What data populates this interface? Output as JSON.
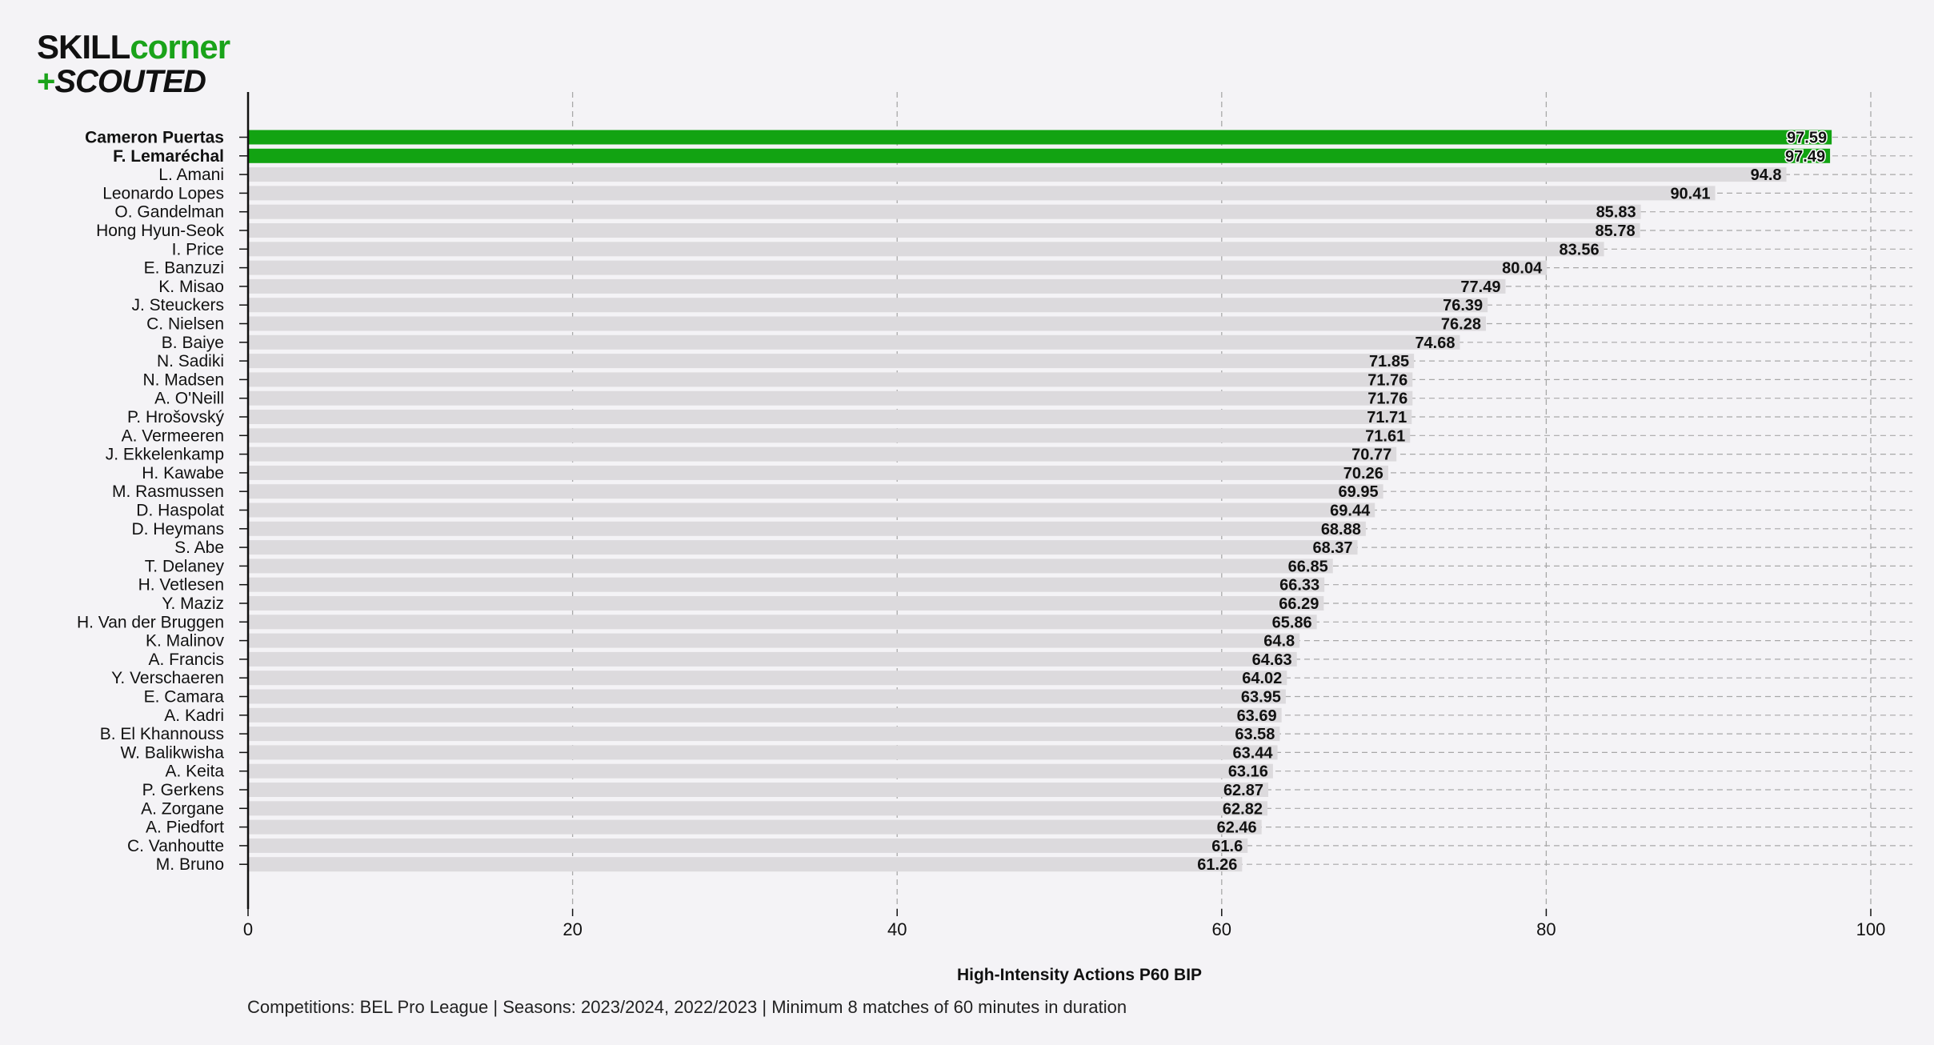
{
  "logo": {
    "line1_part1": "SKILL",
    "line1_part2": "corner",
    "line2_plus": "+",
    "line2_text": "SCOUTED"
  },
  "colors": {
    "highlight": "#12a312",
    "bar": "#dcdadd",
    "background": "#f4f3f6",
    "grid": "#a8a8a8"
  },
  "footnote": "Competitions: BEL Pro League | Seasons: 2023/2024, 2022/2023 | Minimum 8 matches of 60 minutes in duration",
  "chart_data": {
    "type": "bar",
    "orientation": "horizontal",
    "xlabel": "High-Intensity Actions P60 BIP",
    "ylabel": "",
    "xlim": [
      0,
      100
    ],
    "xticks": [
      0,
      20,
      40,
      60,
      80,
      100
    ],
    "grid": "x-dashed",
    "categories": [
      "Cameron Puertas",
      "F. Lemaréchal",
      "L. Amani",
      "Leonardo Lopes",
      "O. Gandelman",
      "Hong Hyun-Seok",
      "I. Price",
      "E. Banzuzi",
      "K. Misao",
      "J. Steuckers",
      "C. Nielsen",
      "B. Baiye",
      "N. Sadiki",
      "N. Madsen",
      "A. O'Neill",
      "P. Hrošovský",
      "A. Vermeeren",
      "J. Ekkelenkamp",
      "H. Kawabe",
      "M. Rasmussen",
      "D. Haspolat",
      "D. Heymans",
      "S. Abe",
      "T. Delaney",
      "H. Vetlesen",
      "Y. Maziz",
      "H. Van der Bruggen",
      "K. Malinov",
      "A. Francis",
      "Y. Verschaeren",
      "E. Camara",
      "A. Kadri",
      "B. El Khannouss",
      "W. Balikwisha",
      "A. Keita",
      "P. Gerkens",
      "A. Zorgane",
      "A. Piedfort",
      "C. Vanhoutte",
      "M. Bruno"
    ],
    "values": [
      97.59,
      97.49,
      94.8,
      90.41,
      85.83,
      85.78,
      83.56,
      80.04,
      77.49,
      76.39,
      76.28,
      74.68,
      71.85,
      71.76,
      71.76,
      71.71,
      71.61,
      70.77,
      70.26,
      69.95,
      69.44,
      68.88,
      68.37,
      66.85,
      66.33,
      66.29,
      65.86,
      64.8,
      64.63,
      64.02,
      63.95,
      63.69,
      63.58,
      63.44,
      63.16,
      62.87,
      62.82,
      62.46,
      61.6,
      61.26
    ],
    "value_labels": [
      "97.59",
      "97.49",
      "94.8",
      "90.41",
      "85.83",
      "85.78",
      "83.56",
      "80.04",
      "77.49",
      "76.39",
      "76.28",
      "74.68",
      "71.85",
      "71.76",
      "71.76",
      "71.71",
      "71.61",
      "70.77",
      "70.26",
      "69.95",
      "69.44",
      "68.88",
      "68.37",
      "66.85",
      "66.33",
      "66.29",
      "65.86",
      "64.8",
      "64.63",
      "64.02",
      "63.95",
      "63.69",
      "63.58",
      "63.44",
      "63.16",
      "62.87",
      "62.82",
      "62.46",
      "61.6",
      "61.26"
    ],
    "highlighted": [
      "Cameron Puertas",
      "F. Lemaréchal"
    ]
  }
}
